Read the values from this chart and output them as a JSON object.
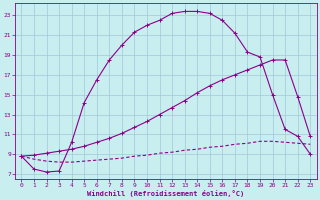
{
  "xlabel": "Windchill (Refroidissement éolien,°C)",
  "bg_color": "#c8eef0",
  "grid_color": "#a0c8d8",
  "line_color": "#8b008b",
  "xlim": [
    -0.5,
    23.5
  ],
  "ylim": [
    6.5,
    24.2
  ],
  "xticks": [
    0,
    1,
    2,
    3,
    4,
    5,
    6,
    7,
    8,
    9,
    10,
    11,
    12,
    13,
    14,
    15,
    16,
    17,
    18,
    19,
    20,
    21,
    22,
    23
  ],
  "yticks": [
    7,
    9,
    11,
    13,
    15,
    17,
    19,
    21,
    23
  ],
  "line1_x": [
    0,
    1,
    2,
    3,
    4,
    5,
    6,
    7,
    8,
    9,
    10,
    11,
    12,
    13,
    14,
    15,
    16,
    17,
    18,
    19,
    20,
    21,
    22,
    23
  ],
  "line1_y": [
    8.8,
    7.5,
    7.2,
    7.3,
    10.2,
    14.2,
    16.5,
    18.5,
    20.0,
    21.3,
    22.0,
    22.5,
    23.2,
    23.4,
    23.4,
    23.2,
    22.5,
    21.2,
    19.3,
    18.8,
    15.0,
    11.5,
    10.8,
    9.0
  ],
  "line2_x": [
    0,
    1,
    2,
    3,
    4,
    5,
    6,
    7,
    8,
    9,
    10,
    11,
    12,
    13,
    14,
    15,
    16,
    17,
    18,
    19,
    20,
    21,
    22,
    23
  ],
  "line2_y": [
    8.8,
    8.9,
    9.1,
    9.3,
    9.5,
    9.8,
    10.2,
    10.6,
    11.1,
    11.7,
    12.3,
    13.0,
    13.7,
    14.4,
    15.2,
    15.9,
    16.5,
    17.0,
    17.5,
    18.0,
    18.5,
    18.5,
    14.8,
    10.8
  ],
  "line3_x": [
    0,
    1,
    2,
    3,
    4,
    5,
    6,
    7,
    8,
    9,
    10,
    11,
    12,
    13,
    14,
    15,
    16,
    17,
    18,
    19,
    20,
    21,
    22,
    23
  ],
  "line3_y": [
    8.8,
    8.5,
    8.3,
    8.2,
    8.2,
    8.3,
    8.4,
    8.5,
    8.6,
    8.8,
    8.9,
    9.1,
    9.2,
    9.4,
    9.5,
    9.7,
    9.8,
    10.0,
    10.1,
    10.3,
    10.3,
    10.2,
    10.1,
    10.0
  ]
}
